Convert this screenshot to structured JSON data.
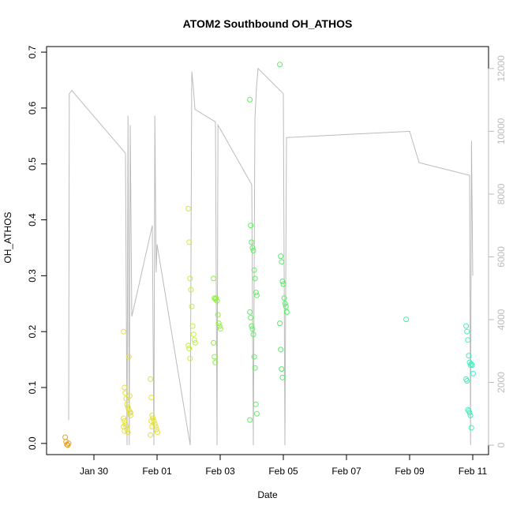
{
  "chart_data": {
    "type": "scatter",
    "title": "ATOM2 Southbound OH_ATHOS",
    "xlabel": "Date",
    "ylabel": "OH_ATHOS",
    "x_tick_labels": [
      "Jan 30",
      "Feb 01",
      "Feb 03",
      "Feb 05",
      "Feb 07",
      "Feb 09",
      "Feb 11"
    ],
    "x_tick_days": [
      30,
      32,
      34,
      36,
      38,
      40,
      42
    ],
    "xlim_days": [
      28.5,
      42.5
    ],
    "x_day_origin": "Jan 0",
    "ylim": [
      -0.02,
      0.71
    ],
    "y_ticks": [
      0.0,
      0.1,
      0.2,
      0.3,
      0.4,
      0.5,
      0.6,
      0.7
    ],
    "y2_ticks": [
      0,
      2000,
      4000,
      6000,
      8000,
      10000,
      12000
    ],
    "y2lim": [
      -300,
      12700
    ],
    "points_color_by": "date",
    "point_clusters": [
      {
        "day": 29.2,
        "color": "#e8a020",
        "values": [
          0.011,
          0.003,
          -0.002,
          -0.003,
          0.0
        ]
      },
      {
        "day": 31.05,
        "color": "#e2e040",
        "values": [
          0.2,
          0.1,
          0.09,
          0.08,
          0.07,
          0.065,
          0.06,
          0.055,
          0.05,
          0.045,
          0.04,
          0.035,
          0.03,
          0.025,
          0.02,
          0.155,
          0.085,
          0.055,
          0.03,
          0.022
        ]
      },
      {
        "day": 31.9,
        "color": "#e2e040",
        "values": [
          0.115,
          0.082,
          0.05,
          0.045,
          0.04,
          0.035,
          0.03,
          0.025,
          0.02,
          0.015,
          0.04,
          0.03
        ]
      },
      {
        "day": 33.1,
        "color": "#c0f040",
        "values": [
          0.42,
          0.36,
          0.295,
          0.275,
          0.245,
          0.21,
          0.195,
          0.185,
          0.18,
          0.175,
          0.17,
          0.152
        ]
      },
      {
        "day": 33.9,
        "color": "#90f040",
        "values": [
          0.295,
          0.26,
          0.258,
          0.26,
          0.255,
          0.23,
          0.215,
          0.21,
          0.205,
          0.18,
          0.155,
          0.145
        ]
      },
      {
        "day": 35.05,
        "color": "#60f060",
        "values": [
          0.615,
          0.39,
          0.36,
          0.35,
          0.345,
          0.31,
          0.295,
          0.27,
          0.265,
          0.235,
          0.225,
          0.21,
          0.205,
          0.195,
          0.155,
          0.135,
          0.07,
          0.053,
          0.042
        ]
      },
      {
        "day": 36.0,
        "color": "#50f060",
        "values": [
          0.678,
          0.335,
          0.325,
          0.29,
          0.285,
          0.26,
          0.25,
          0.245,
          0.235,
          0.215,
          0.168,
          0.133,
          0.118
        ]
      },
      {
        "day": 40.0,
        "color": "#40f0a0",
        "values": [
          0.222
        ]
      },
      {
        "day": 41.9,
        "color": "#40f0c0",
        "values": [
          0.21,
          0.2,
          0.185,
          0.157,
          0.145,
          0.14,
          0.142,
          0.14,
          0.125,
          0.115,
          0.112,
          0.06,
          0.058,
          0.055,
          0.05,
          0.028
        ]
      }
    ],
    "line_series_y2": {
      "color": "#bbbbbb",
      "points": [
        [
          29.2,
          800
        ],
        [
          29.22,
          11200
        ],
        [
          29.3,
          11300
        ],
        [
          31.0,
          9300
        ],
        [
          31.05,
          0
        ],
        [
          31.08,
          10500
        ],
        [
          31.12,
          0
        ],
        [
          31.15,
          10200
        ],
        [
          31.2,
          4100
        ],
        [
          31.85,
          7000
        ],
        [
          31.9,
          0
        ],
        [
          31.93,
          10500
        ],
        [
          31.97,
          5500
        ],
        [
          32.0,
          6400
        ],
        [
          33.05,
          0
        ],
        [
          33.1,
          11900
        ],
        [
          33.15,
          11400
        ],
        [
          33.2,
          10700
        ],
        [
          33.85,
          10300
        ],
        [
          33.9,
          0
        ],
        [
          33.93,
          10200
        ],
        [
          35.0,
          8300
        ],
        [
          35.05,
          0
        ],
        [
          35.1,
          10400
        ],
        [
          35.15,
          11400
        ],
        [
          35.2,
          12000
        ],
        [
          36.0,
          11200
        ],
        [
          36.05,
          0
        ],
        [
          36.1,
          9800
        ],
        [
          40.0,
          10000
        ],
        [
          40.3,
          9000
        ],
        [
          41.9,
          8600
        ],
        [
          41.93,
          0
        ],
        [
          41.96,
          9700
        ],
        [
          42.0,
          5400
        ]
      ]
    }
  }
}
